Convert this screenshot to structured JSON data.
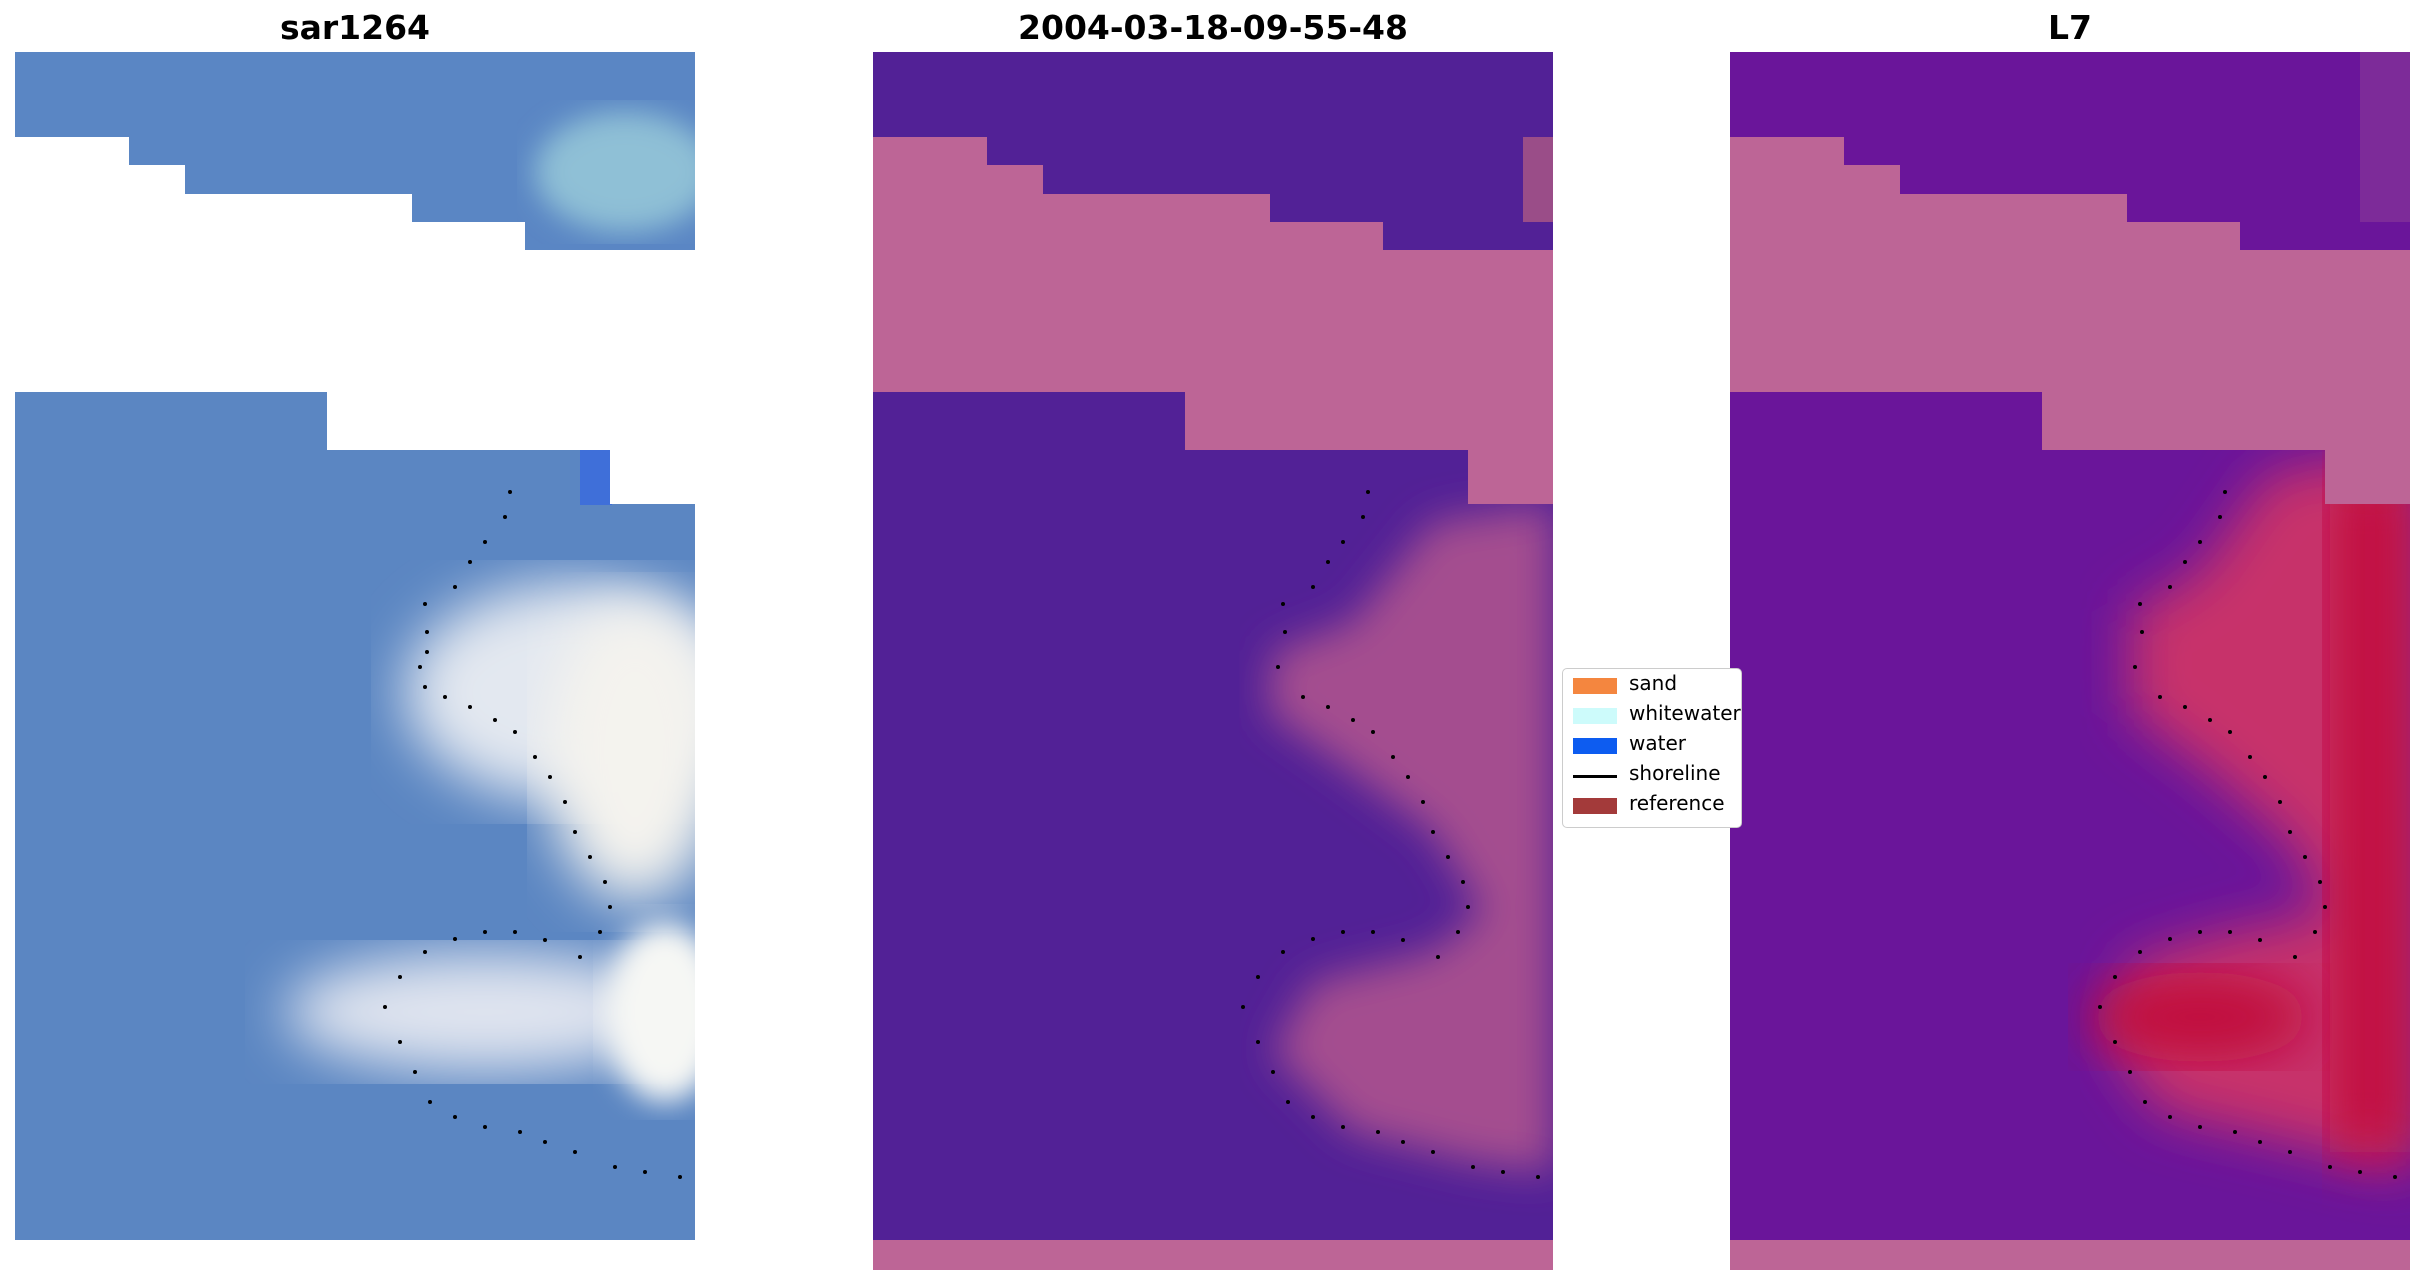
{
  "panels": [
    {
      "title": "sar1264",
      "kind": "rgb"
    },
    {
      "title": "2004-03-18-09-55-48",
      "kind": "classified"
    },
    {
      "title": "L7",
      "kind": "index"
    }
  ],
  "legend": {
    "items": [
      {
        "label": "sand",
        "color": "#f4863f",
        "type": "patch"
      },
      {
        "label": "whitewater",
        "color": "#cdfbfb",
        "type": "patch"
      },
      {
        "label": "water",
        "color": "#0d5cf0",
        "type": "patch"
      },
      {
        "label": "shoreline",
        "color": "#000000",
        "type": "line"
      },
      {
        "label": "reference",
        "color": "#a33a3a",
        "type": "patch"
      }
    ]
  },
  "colors": {
    "image_blue": "#5a86c4",
    "nodata_pink": "#bd6596",
    "water_purple": "#522196",
    "index_purple": "#6a159a",
    "index_red": "#c00a3c",
    "whitewater_light": "#e6eef5"
  }
}
